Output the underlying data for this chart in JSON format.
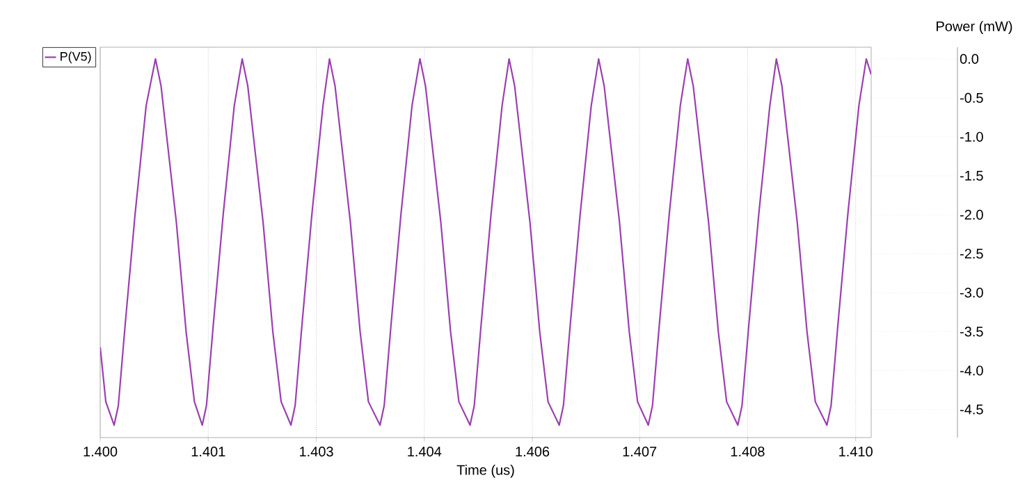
{
  "chart_data": {
    "type": "line",
    "xlabel": "Time (us)",
    "ylabel": "Power (mW)",
    "xlim": [
      1.4,
      1.40992
    ],
    "ylim": [
      -4.86,
      0.15
    ],
    "xticks": [
      {
        "value": 1.4,
        "label": "1.400"
      },
      {
        "value": 1.40139,
        "label": "1.401"
      },
      {
        "value": 1.40278,
        "label": "1.403"
      },
      {
        "value": 1.40417,
        "label": "1.404"
      },
      {
        "value": 1.40556,
        "label": "1.406"
      },
      {
        "value": 1.40694,
        "label": "1.407"
      },
      {
        "value": 1.40833,
        "label": "1.408"
      },
      {
        "value": 1.40972,
        "label": "1.410"
      }
    ],
    "yticks": [
      {
        "value": 0,
        "label": "0.0"
      },
      -0.5,
      {
        "value": -1,
        "label": "-1.0"
      },
      -1.5,
      {
        "value": -2,
        "label": "-2.0"
      },
      -2.5,
      {
        "value": -3,
        "label": "-3.0"
      },
      -3.5,
      {
        "value": -4,
        "label": "-4.0"
      },
      -4.5
    ],
    "grid": "x",
    "legend": "top left",
    "marker": "none",
    "line_style": "solid",
    "x": [
      1.4,
      1.400072,
      1.400179,
      1.400233,
      1.400322,
      1.400448,
      1.400591,
      1.400711,
      1.400783,
      1.40089,
      1.40098,
      1.401105,
      1.401212,
      1.401313,
      1.401367,
      1.401456,
      1.401582,
      1.401725,
      1.401827,
      1.401899,
      1.402006,
      1.402096,
      1.402221,
      1.402328,
      1.402454,
      1.402508,
      1.402597,
      1.402723,
      1.402866,
      1.40295,
      1.403022,
      1.403129,
      1.403219,
      1.403344,
      1.403451,
      1.4036,
      1.403654,
      1.403743,
      1.403869,
      1.404012,
      1.404114,
      1.404186,
      1.404293,
      1.404383,
      1.404508,
      1.404615,
      1.404759,
      1.404813,
      1.404902,
      1.405028,
      1.405171,
      1.405261,
      1.405333,
      1.40544,
      1.40553,
      1.405655,
      1.405762,
      1.405906,
      1.40596,
      1.406049,
      1.406175,
      1.406318,
      1.406413,
      1.406485,
      1.406592,
      1.406682,
      1.406807,
      1.406914,
      1.407052,
      1.407106,
      1.407195,
      1.407321,
      1.407464,
      1.407559,
      1.407631,
      1.407738,
      1.407828,
      1.407953,
      1.40806,
      1.408204,
      1.408258,
      1.408347,
      1.408473,
      1.408616,
      1.4087,
      1.408772,
      1.408879,
      1.408969,
      1.409094,
      1.409201,
      1.40935,
      1.409404,
      1.409493,
      1.409619,
      1.409762,
      1.409857,
      1.40992
    ],
    "series": [
      {
        "name": "P(V5)",
        "color": "#9b3fb0",
        "values": [
          -3.7,
          -4.4,
          -4.7,
          -4.45,
          -3.4,
          -2.0,
          -0.6,
          0.0,
          -0.35,
          -1.3,
          -2.1,
          -3.5,
          -4.4,
          -4.7,
          -4.45,
          -3.4,
          -2.0,
          -0.6,
          0.0,
          -0.35,
          -1.3,
          -2.1,
          -3.5,
          -4.4,
          -4.7,
          -4.45,
          -3.4,
          -2.0,
          -0.6,
          0.0,
          -0.35,
          -1.3,
          -2.1,
          -3.5,
          -4.4,
          -4.7,
          -4.45,
          -3.4,
          -2.0,
          -0.6,
          0.0,
          -0.35,
          -1.3,
          -2.1,
          -3.5,
          -4.4,
          -4.7,
          -4.45,
          -3.4,
          -2.0,
          -0.6,
          0.0,
          -0.35,
          -1.3,
          -2.1,
          -3.5,
          -4.4,
          -4.7,
          -4.45,
          -3.4,
          -2.0,
          -0.6,
          0.0,
          -0.35,
          -1.3,
          -2.1,
          -3.5,
          -4.4,
          -4.7,
          -4.45,
          -3.4,
          -2.0,
          -0.6,
          0.0,
          -0.35,
          -1.3,
          -2.1,
          -3.5,
          -4.4,
          -4.7,
          -4.45,
          -3.4,
          -2.0,
          -0.6,
          0.0,
          -0.35,
          -1.3,
          -2.1,
          -3.5,
          -4.4,
          -4.7,
          -4.45,
          -3.4,
          -2.0,
          -0.6,
          0.0,
          -0.2
        ]
      }
    ]
  }
}
